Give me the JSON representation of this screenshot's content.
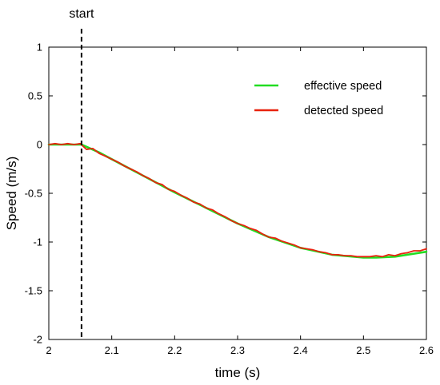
{
  "chart_data": {
    "type": "line",
    "title": "",
    "xlabel": "time (s)",
    "ylabel": "Speed (m/s)",
    "xlim": [
      2,
      2.6
    ],
    "ylim": [
      -2,
      1
    ],
    "xticks": [
      "2",
      "2.1",
      "2.2",
      "2.3",
      "2.4",
      "2.5",
      "2.6"
    ],
    "yticks": [
      "1",
      "0.5",
      "0",
      "-0.5",
      "-1",
      "-1.5",
      "-2"
    ],
    "grid": false,
    "legend_position": "top-right",
    "annotation": {
      "label": "start",
      "x": 2.052
    },
    "series": [
      {
        "name": "effective speed",
        "color": "#22dd22",
        "x": [
          2.0,
          2.052,
          2.08,
          2.1,
          2.15,
          2.2,
          2.25,
          2.3,
          2.35,
          2.4,
          2.45,
          2.5,
          2.52,
          2.55,
          2.6
        ],
        "y": [
          0.0,
          0.0,
          -0.08,
          -0.15,
          -0.32,
          -0.49,
          -0.65,
          -0.81,
          -0.95,
          -1.06,
          -1.13,
          -1.16,
          -1.16,
          -1.15,
          -1.1
        ]
      },
      {
        "name": "detected speed",
        "color": "#e8220e",
        "x": [
          2.0,
          2.01,
          2.02,
          2.03,
          2.04,
          2.05,
          2.06,
          2.07,
          2.08,
          2.09,
          2.1,
          2.11,
          2.12,
          2.13,
          2.14,
          2.15,
          2.16,
          2.17,
          2.18,
          2.19,
          2.2,
          2.21,
          2.22,
          2.23,
          2.24,
          2.25,
          2.26,
          2.27,
          2.28,
          2.29,
          2.3,
          2.31,
          2.32,
          2.33,
          2.34,
          2.35,
          2.36,
          2.37,
          2.38,
          2.39,
          2.4,
          2.41,
          2.42,
          2.43,
          2.44,
          2.45,
          2.46,
          2.47,
          2.48,
          2.49,
          2.5,
          2.51,
          2.52,
          2.53,
          2.54,
          2.55,
          2.56,
          2.57,
          2.58,
          2.59,
          2.6
        ],
        "y": [
          0.0,
          0.01,
          0.0,
          0.01,
          0.0,
          0.01,
          -0.05,
          -0.04,
          -0.09,
          -0.12,
          -0.15,
          -0.18,
          -0.22,
          -0.25,
          -0.28,
          -0.32,
          -0.35,
          -0.39,
          -0.41,
          -0.46,
          -0.48,
          -0.52,
          -0.55,
          -0.59,
          -0.61,
          -0.65,
          -0.67,
          -0.71,
          -0.74,
          -0.78,
          -0.81,
          -0.83,
          -0.86,
          -0.88,
          -0.92,
          -0.95,
          -0.96,
          -0.99,
          -1.01,
          -1.03,
          -1.06,
          -1.07,
          -1.08,
          -1.1,
          -1.11,
          -1.13,
          -1.13,
          -1.14,
          -1.14,
          -1.15,
          -1.15,
          -1.15,
          -1.14,
          -1.15,
          -1.13,
          -1.14,
          -1.12,
          -1.11,
          -1.09,
          -1.09,
          -1.07
        ]
      }
    ]
  }
}
